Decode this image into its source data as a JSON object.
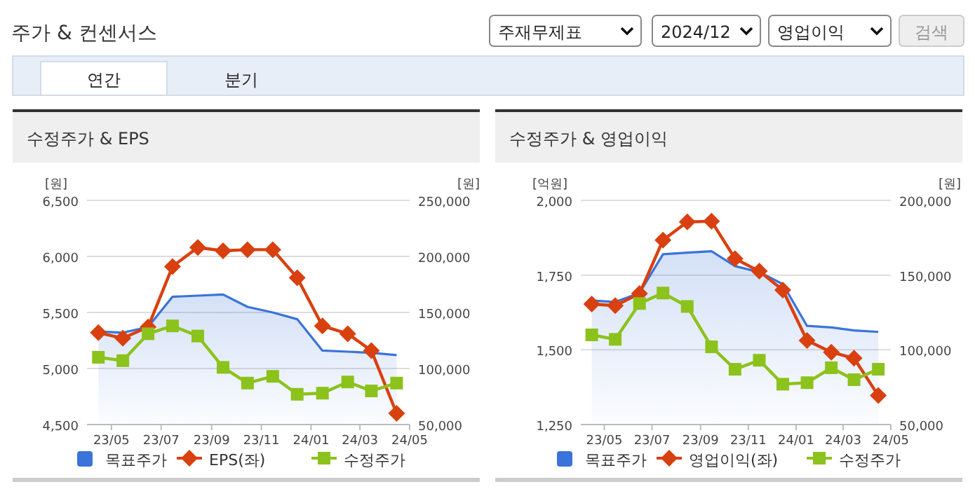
{
  "chart_data": [
    {
      "type": "line",
      "title": "수정주가 & EPS",
      "ylabel": "[원]",
      "y2label": "[원]",
      "annotations": [
        "주가 & 컨센서스",
        "주재무제표",
        "2024/12",
        "영업이익",
        "검색",
        "연간",
        "분기"
      ],
      "x": [
        "2023-04-15",
        "2023-05-15",
        "2023-06-15",
        "2023-07-15",
        "2023-08-15",
        "2023-09-15",
        "2023-10-15",
        "2023-11-15",
        "2023-12-15",
        "2024-01-15",
        "2024-02-15",
        "2024-03-15",
        "2024-04-15"
      ],
      "xlim": [
        "2023-04-01",
        "2024-05-01"
      ],
      "xticks": [
        {
          "value": "2023-05-01",
          "label": "23/05"
        },
        {
          "value": "2023-07-01",
          "label": "23/07"
        },
        {
          "value": "2023-09-01",
          "label": "23/09"
        },
        {
          "value": "2023-11-01",
          "label": "23/11"
        },
        {
          "value": "2024-01-01",
          "label": "24/01"
        },
        {
          "value": "2024-03-01",
          "label": "24/03"
        },
        {
          "value": "2024-05-01",
          "label": "24/05"
        }
      ],
      "ylim": [
        4500,
        6500
      ],
      "yticks": [
        {
          "value": 4500,
          "label": "4,500"
        },
        {
          "value": 5000,
          "label": "5,000"
        },
        {
          "value": 5500,
          "label": "5,500"
        },
        {
          "value": 6000,
          "label": "6,000"
        },
        {
          "value": 6500,
          "label": "6,500"
        }
      ],
      "y2lim": [
        50000,
        250000
      ],
      "y2ticks": [
        {
          "value": 50000,
          "label": "50,000"
        },
        {
          "value": 100000,
          "label": "100,000"
        },
        {
          "value": 150000,
          "label": "150,000"
        },
        {
          "value": 200000,
          "label": "200,000"
        },
        {
          "value": 250000,
          "label": "250,000"
        }
      ],
      "grid": "y",
      "legend": "bottom",
      "series": [
        {
          "name": "목표주가",
          "type": "area",
          "axis": "y2",
          "color": "#3a73d9",
          "marker": "none",
          "values": [
            133000,
            132000,
            137000,
            164000,
            165000,
            166000,
            155000,
            150000,
            144000,
            116000,
            115000,
            114000,
            112000
          ]
        },
        {
          "name": "EPS(좌)",
          "color": "#d9400f",
          "marker": "diamond",
          "values": [
            5320,
            5270,
            5370,
            5910,
            6080,
            6050,
            6060,
            6060,
            5810,
            5380,
            5310,
            5160,
            4600
          ]
        },
        {
          "name": "수정주가",
          "axis": "y2",
          "color": "#8cc21c",
          "marker": "square",
          "values": [
            110000,
            107000,
            131000,
            138000,
            129000,
            101000,
            87000,
            93000,
            77000,
            78000,
            88000,
            80000,
            87000
          ]
        }
      ]
    },
    {
      "type": "line",
      "title": "수정주가 & 영업이익",
      "ylabel": "[억원]",
      "y2label": "[원]",
      "x": [
        "2023-04-15",
        "2023-05-15",
        "2023-06-15",
        "2023-07-15",
        "2023-08-15",
        "2023-09-15",
        "2023-10-15",
        "2023-11-15",
        "2023-12-15",
        "2024-01-15",
        "2024-02-15",
        "2024-03-15",
        "2024-04-15"
      ],
      "xlim": [
        "2023-04-01",
        "2024-05-01"
      ],
      "xticks": [
        {
          "value": "2023-05-01",
          "label": "23/05"
        },
        {
          "value": "2023-07-01",
          "label": "23/07"
        },
        {
          "value": "2023-09-01",
          "label": "23/09"
        },
        {
          "value": "2023-11-01",
          "label": "23/11"
        },
        {
          "value": "2024-01-01",
          "label": "24/01"
        },
        {
          "value": "2024-03-01",
          "label": "24/03"
        },
        {
          "value": "2024-05-01",
          "label": "24/05"
        }
      ],
      "ylim": [
        1250,
        2000
      ],
      "yticks": [
        {
          "value": 1250,
          "label": "1,250"
        },
        {
          "value": 1500,
          "label": "1,500"
        },
        {
          "value": 1750,
          "label": "1,750"
        },
        {
          "value": 2000,
          "label": "2,000"
        }
      ],
      "y2lim": [
        50000,
        200000
      ],
      "y2ticks": [
        {
          "value": 50000,
          "label": "50,000"
        },
        {
          "value": 100000,
          "label": "100,000"
        },
        {
          "value": 150000,
          "label": "150,000"
        },
        {
          "value": 200000,
          "label": "200,000"
        }
      ],
      "grid": "y",
      "legend": "bottom",
      "series": [
        {
          "name": "목표주가",
          "type": "area",
          "axis": "y2",
          "color": "#3a73d9",
          "marker": "none",
          "values": [
            133000,
            132000,
            138000,
            164000,
            165000,
            166000,
            156000,
            152000,
            144000,
            116000,
            115000,
            113000,
            112000
          ]
        },
        {
          "name": "영업이익(좌)",
          "color": "#d9400f",
          "marker": "diamond",
          "values": [
            1653,
            1648,
            1688,
            1867,
            1928,
            1930,
            1805,
            1763,
            1700,
            1531,
            1492,
            1472,
            1347
          ]
        },
        {
          "name": "수정주가",
          "axis": "y2",
          "color": "#8cc21c",
          "marker": "square",
          "values": [
            110000,
            107000,
            131000,
            138000,
            129000,
            102000,
            87000,
            93000,
            77000,
            78000,
            88000,
            80000,
            87000
          ]
        }
      ]
    }
  ]
}
